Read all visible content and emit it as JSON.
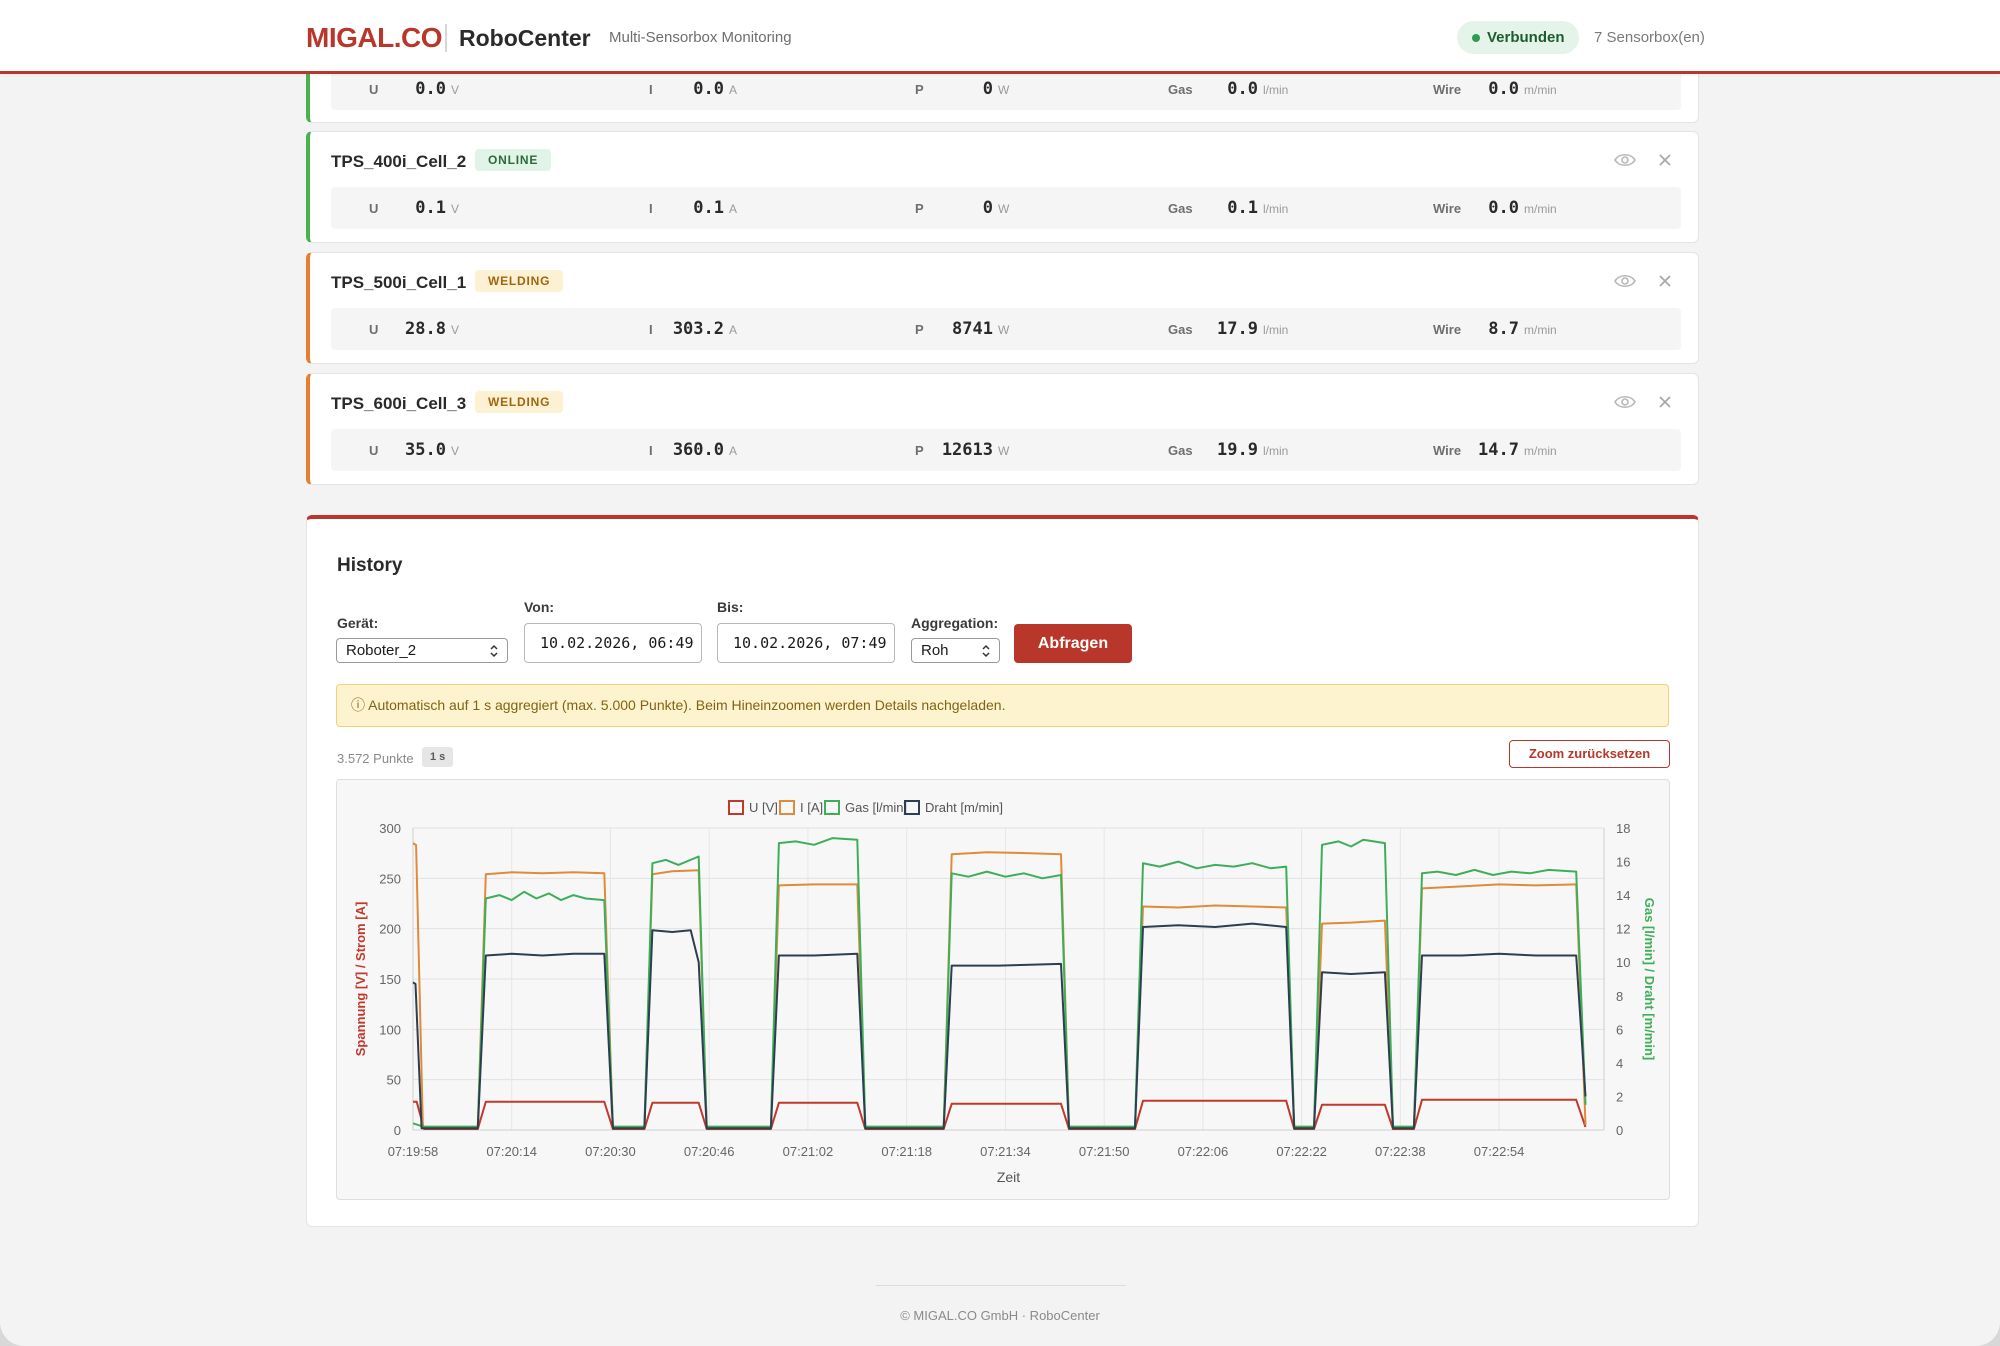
{
  "header": {
    "brand": "MIGAL.CO",
    "app_name": "RoboCenter",
    "subtitle": "Multi-Sensorbox Monitoring",
    "status": "Verbunden",
    "sensor_count": "7 Sensorbox(en)"
  },
  "devices": [
    {
      "name": "",
      "status": "",
      "metrics": [
        {
          "label": "U",
          "value": "0.0",
          "unit": "V"
        },
        {
          "label": "I",
          "value": "0.0",
          "unit": "A"
        },
        {
          "label": "P",
          "value": "0",
          "unit": "W"
        },
        {
          "label": "Gas",
          "value": "0.0",
          "unit": "l/min"
        },
        {
          "label": "Wire",
          "value": "0.0",
          "unit": "m/min"
        }
      ]
    },
    {
      "name": "TPS_400i_Cell_2",
      "status": "ONLINE",
      "metrics": [
        {
          "label": "U",
          "value": "0.1",
          "unit": "V"
        },
        {
          "label": "I",
          "value": "0.1",
          "unit": "A"
        },
        {
          "label": "P",
          "value": "0",
          "unit": "W"
        },
        {
          "label": "Gas",
          "value": "0.1",
          "unit": "l/min"
        },
        {
          "label": "Wire",
          "value": "0.0",
          "unit": "m/min"
        }
      ]
    },
    {
      "name": "TPS_500i_Cell_1",
      "status": "WELDING",
      "metrics": [
        {
          "label": "U",
          "value": "28.8",
          "unit": "V"
        },
        {
          "label": "I",
          "value": "303.2",
          "unit": "A"
        },
        {
          "label": "P",
          "value": "8741",
          "unit": "W"
        },
        {
          "label": "Gas",
          "value": "17.9",
          "unit": "l/min"
        },
        {
          "label": "Wire",
          "value": "8.7",
          "unit": "m/min"
        }
      ]
    },
    {
      "name": "TPS_600i_Cell_3",
      "status": "WELDING",
      "metrics": [
        {
          "label": "U",
          "value": "35.0",
          "unit": "V"
        },
        {
          "label": "I",
          "value": "360.0",
          "unit": "A"
        },
        {
          "label": "P",
          "value": "12613",
          "unit": "W"
        },
        {
          "label": "Gas",
          "value": "19.9",
          "unit": "l/min"
        },
        {
          "label": "Wire",
          "value": "14.7",
          "unit": "m/min"
        }
      ]
    }
  ],
  "icons": {
    "view": "eye-icon",
    "close": "close-icon",
    "select": "select-arrows-icon",
    "info": "info-icon"
  },
  "history": {
    "title": "History",
    "device_label": "Gerät:",
    "device_value": "Roboter_2",
    "from_label": "Von:",
    "from_value": "10.02.2026, 06:49",
    "to_label": "Bis:",
    "to_value": "10.02.2026, 07:49",
    "aggregation_label": "Aggregation:",
    "aggregation_value": "Roh",
    "query_button": "Abfragen",
    "info_text": "ⓘ Automatisch auf 1 s aggregiert (max. 5.000 Punkte). Beim Hineinzoomen werden Details nachgeladen.",
    "points": "3.572 Punkte",
    "aggregation_badge": "1 s",
    "zoom_reset": "Zoom zurücksetzen"
  },
  "colors": {
    "brand": "#b8372a",
    "u": "#c0392b",
    "i": "#e08a3c",
    "gas": "#3fae5a",
    "wire": "#2c3e50",
    "online": "#4caf50",
    "welding": "#e67e30"
  },
  "chart_data": {
    "type": "line",
    "xlabel": "Zeit",
    "ylabel_left": "Spannung [V] / Strom [A]",
    "ylabel_right": "Gas [l/min] / Draht [m/min]",
    "ylim_left": [
      0,
      300
    ],
    "ylim_right": [
      0,
      18
    ],
    "yticks_left": [
      "0",
      "50",
      "100",
      "150",
      "200",
      "250",
      "300"
    ],
    "yticks_right": [
      "0",
      "2",
      "4",
      "6",
      "8",
      "10",
      "12",
      "14",
      "16",
      "18"
    ],
    "xlim": [
      0,
      193
    ],
    "xticks": [
      "07:19:58",
      "07:20:14",
      "07:20:30",
      "07:20:46",
      "07:21:02",
      "07:21:18",
      "07:21:34",
      "07:21:50",
      "07:22:06",
      "07:22:22",
      "07:22:38",
      "07:22:54"
    ],
    "grid": true,
    "legend_position": "top-center",
    "series": [
      {
        "name": "U [V]",
        "axis": "left",
        "color": "#c0392b",
        "points": [
          [
            0,
            28
          ],
          [
            0.6,
            28
          ],
          [
            1.8,
            1
          ],
          [
            10.5,
            1
          ],
          [
            11.8,
            28
          ],
          [
            31,
            28
          ],
          [
            32.4,
            1
          ],
          [
            37.5,
            1
          ],
          [
            38.8,
            27
          ],
          [
            46.3,
            27
          ],
          [
            47.6,
            1
          ],
          [
            58,
            1
          ],
          [
            59.3,
            27
          ],
          [
            72,
            27
          ],
          [
            73.3,
            1
          ],
          [
            86,
            1
          ],
          [
            87.3,
            26
          ],
          [
            105,
            26
          ],
          [
            106.3,
            1
          ],
          [
            117,
            1
          ],
          [
            118.3,
            29
          ],
          [
            141.5,
            29
          ],
          [
            142.8,
            1
          ],
          [
            146,
            1
          ],
          [
            147.3,
            25
          ],
          [
            157.5,
            25
          ],
          [
            158.8,
            1
          ],
          [
            162.2,
            1
          ],
          [
            163.5,
            30
          ],
          [
            188.5,
            30
          ],
          [
            190,
            3
          ]
        ]
      },
      {
        "name": "I [A]",
        "axis": "left",
        "color": "#e08a3c",
        "points": [
          [
            0,
            285
          ],
          [
            0.5,
            283
          ],
          [
            1.6,
            2
          ],
          [
            10.5,
            2
          ],
          [
            11.8,
            254
          ],
          [
            16,
            256
          ],
          [
            21,
            255
          ],
          [
            26,
            256
          ],
          [
            31,
            255
          ],
          [
            32.4,
            2
          ],
          [
            37.5,
            2
          ],
          [
            38.8,
            254
          ],
          [
            42,
            257
          ],
          [
            46.3,
            258
          ],
          [
            47.6,
            2
          ],
          [
            58,
            2
          ],
          [
            59.3,
            243
          ],
          [
            65,
            244
          ],
          [
            72,
            244
          ],
          [
            73.3,
            2
          ],
          [
            86,
            2
          ],
          [
            87.3,
            274
          ],
          [
            93,
            276
          ],
          [
            100,
            275
          ],
          [
            105,
            274
          ],
          [
            106.3,
            2
          ],
          [
            117,
            2
          ],
          [
            118.3,
            222
          ],
          [
            124,
            221
          ],
          [
            130,
            223
          ],
          [
            136,
            222
          ],
          [
            141.5,
            221
          ],
          [
            142.8,
            2
          ],
          [
            146,
            2
          ],
          [
            147.3,
            205
          ],
          [
            152,
            206
          ],
          [
            157.5,
            208
          ],
          [
            158.8,
            2
          ],
          [
            162.2,
            2
          ],
          [
            163.5,
            240
          ],
          [
            170,
            242
          ],
          [
            176,
            244
          ],
          [
            182,
            243
          ],
          [
            188.5,
            244
          ],
          [
            190,
            5
          ]
        ]
      },
      {
        "name": "Gas [l/min]",
        "axis": "right",
        "color": "#3fae5a",
        "points": [
          [
            0,
            0.4
          ],
          [
            1.6,
            0.2
          ],
          [
            10.5,
            0.2
          ],
          [
            11.8,
            13.8
          ],
          [
            14,
            14.0
          ],
          [
            16,
            13.7
          ],
          [
            18,
            14.2
          ],
          [
            20,
            13.8
          ],
          [
            22,
            14.1
          ],
          [
            24,
            13.7
          ],
          [
            26,
            14.0
          ],
          [
            28,
            13.8
          ],
          [
            31,
            13.7
          ],
          [
            32.4,
            0.2
          ],
          [
            37.5,
            0.2
          ],
          [
            38.8,
            15.9
          ],
          [
            41,
            16.1
          ],
          [
            43,
            15.8
          ],
          [
            46.3,
            16.3
          ],
          [
            47.6,
            0.2
          ],
          [
            58,
            0.2
          ],
          [
            59.3,
            17.1
          ],
          [
            62,
            17.2
          ],
          [
            65,
            17.0
          ],
          [
            68,
            17.4
          ],
          [
            72,
            17.3
          ],
          [
            73.3,
            0.2
          ],
          [
            86,
            0.2
          ],
          [
            87.3,
            15.3
          ],
          [
            90,
            15.1
          ],
          [
            93,
            15.4
          ],
          [
            96,
            15.1
          ],
          [
            99,
            15.3
          ],
          [
            102,
            15.0
          ],
          [
            105,
            15.2
          ],
          [
            106.3,
            0.2
          ],
          [
            117,
            0.2
          ],
          [
            118.3,
            15.9
          ],
          [
            121,
            15.7
          ],
          [
            124,
            16.0
          ],
          [
            127,
            15.6
          ],
          [
            130,
            15.8
          ],
          [
            133,
            15.7
          ],
          [
            136,
            15.9
          ],
          [
            139,
            15.6
          ],
          [
            141.5,
            15.7
          ],
          [
            142.8,
            0.2
          ],
          [
            146,
            0.2
          ],
          [
            147.3,
            17.0
          ],
          [
            150,
            17.2
          ],
          [
            152,
            16.9
          ],
          [
            154,
            17.3
          ],
          [
            157.5,
            17.1
          ],
          [
            158.8,
            0.2
          ],
          [
            162.2,
            0.2
          ],
          [
            163.5,
            15.3
          ],
          [
            166,
            15.4
          ],
          [
            169,
            15.2
          ],
          [
            172,
            15.5
          ],
          [
            175,
            15.2
          ],
          [
            178,
            15.4
          ],
          [
            181,
            15.3
          ],
          [
            184,
            15.5
          ],
          [
            188.5,
            15.4
          ],
          [
            190,
            1.5
          ]
        ]
      },
      {
        "name": "Draht [m/min]",
        "axis": "right",
        "color": "#2c3e50",
        "points": [
          [
            0,
            8.8
          ],
          [
            0.4,
            8.7
          ],
          [
            1.4,
            0.1
          ],
          [
            10.5,
            0.1
          ],
          [
            11.8,
            10.4
          ],
          [
            16,
            10.5
          ],
          [
            21,
            10.4
          ],
          [
            26,
            10.5
          ],
          [
            31,
            10.5
          ],
          [
            32.4,
            0.1
          ],
          [
            37.5,
            0.1
          ],
          [
            38.8,
            11.9
          ],
          [
            42,
            11.8
          ],
          [
            45,
            11.9
          ],
          [
            46.3,
            10.0
          ],
          [
            47.6,
            0.1
          ],
          [
            58,
            0.1
          ],
          [
            59.3,
            10.4
          ],
          [
            65,
            10.4
          ],
          [
            72,
            10.5
          ],
          [
            73.3,
            0.1
          ],
          [
            86,
            0.1
          ],
          [
            87.3,
            9.8
          ],
          [
            95,
            9.8
          ],
          [
            105,
            9.9
          ],
          [
            106.3,
            0.1
          ],
          [
            117,
            0.1
          ],
          [
            118.3,
            12.1
          ],
          [
            124,
            12.2
          ],
          [
            130,
            12.1
          ],
          [
            136,
            12.3
          ],
          [
            141.5,
            12.1
          ],
          [
            142.8,
            0.1
          ],
          [
            146,
            0.1
          ],
          [
            147.3,
            9.4
          ],
          [
            152,
            9.3
          ],
          [
            157.5,
            9.4
          ],
          [
            158.8,
            0.1
          ],
          [
            162.2,
            0.1
          ],
          [
            163.5,
            10.4
          ],
          [
            170,
            10.4
          ],
          [
            176,
            10.5
          ],
          [
            182,
            10.4
          ],
          [
            188.5,
            10.4
          ],
          [
            190,
            2
          ]
        ]
      }
    ]
  },
  "footer": "© MIGAL.CO GmbH · RoboCenter"
}
